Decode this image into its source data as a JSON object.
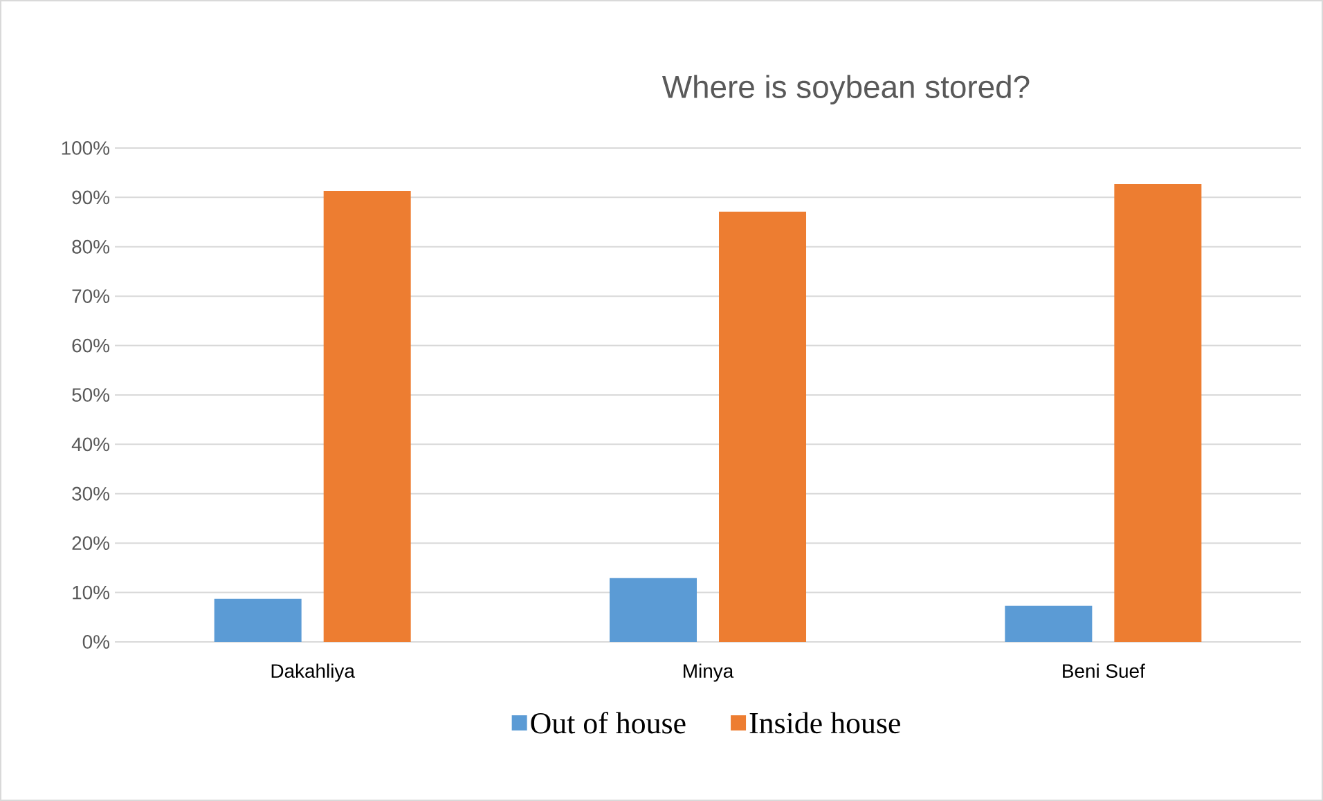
{
  "chart_data": {
    "type": "bar",
    "title": "Where is soybean stored?",
    "categories": [
      "Dakahliya",
      "Minya",
      "Beni Suef"
    ],
    "series": [
      {
        "name": "Out of house",
        "color": "#5b9bd5",
        "values": [
          8.7,
          12.9,
          7.3
        ]
      },
      {
        "name": "Inside house",
        "color": "#ed7d31",
        "values": [
          91.3,
          87.1,
          92.7
        ]
      }
    ],
    "ylim": [
      0,
      100
    ],
    "yticks": [
      {
        "value": 0,
        "label": "0%"
      },
      {
        "value": 10,
        "label": "10%"
      },
      {
        "value": 20,
        "label": "20%"
      },
      {
        "value": 30,
        "label": "30%"
      },
      {
        "value": 40,
        "label": "40%"
      },
      {
        "value": 50,
        "label": "50%"
      },
      {
        "value": 60,
        "label": "60%"
      },
      {
        "value": 70,
        "label": "70%"
      },
      {
        "value": 80,
        "label": "80%"
      },
      {
        "value": 90,
        "label": "90%"
      },
      {
        "value": 100,
        "label": "100%"
      }
    ],
    "grid": "y",
    "legend": "bottom"
  }
}
